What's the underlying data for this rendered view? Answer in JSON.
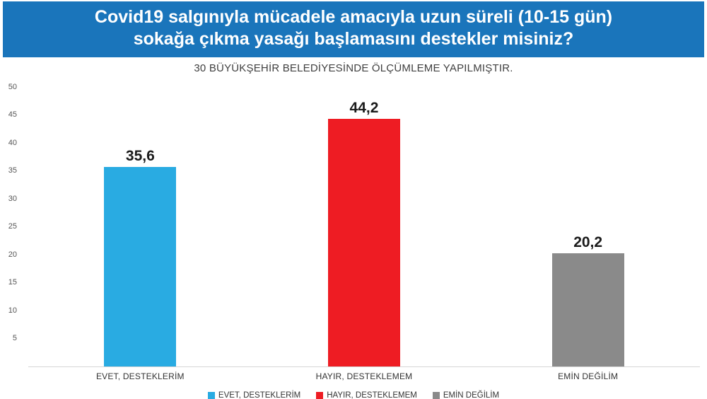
{
  "title": {
    "line1": "Covid19 salgınıyla mücadele amacıyla uzun süreli (10-15 gün)",
    "line2": "sokağa çıkma yasağı başlamasını destekler misiniz?"
  },
  "subtitle": "30 BÜYÜKŞEHİR BELEDİYESİNDE ÖLÇÜMLEME YAPILMIŞTIR.",
  "banner_color": "#1a75bb",
  "chart_data": {
    "type": "bar",
    "title": "Covid19 salgınıyla mücadele amacıyla uzun süreli (10-15 gün) sokağa çıkma yasağı başlamasını destekler misiniz?",
    "subtitle": "30 BÜYÜKŞEHİR BELEDİYESİNDE ÖLÇÜMLEME YAPILMIŞTIR.",
    "categories": [
      "EVET, DESTEKLERİM",
      "HAYIR, DESTEKLEMEM",
      "EMİN DEĞİLİM"
    ],
    "values": [
      35.6,
      44.2,
      20.2
    ],
    "value_labels": [
      "35,6",
      "44,2",
      "20,2"
    ],
    "colors": [
      "#29abe2",
      "#ee1c23",
      "#8a8a8a"
    ],
    "xlabel": "",
    "ylabel": "",
    "ylim": [
      0,
      50
    ],
    "ytick_step": 5,
    "yticks": [
      5,
      10,
      15,
      20,
      25,
      30,
      35,
      40,
      45,
      50
    ],
    "grid": false,
    "legend_position": "bottom",
    "legend": [
      {
        "label": "EVET, DESTEKLERİM",
        "color": "#29abe2"
      },
      {
        "label": "HAYIR, DESTEKLEMEM",
        "color": "#ee1c23"
      },
      {
        "label": "EMİN DEĞİLİM",
        "color": "#8a8a8a"
      }
    ]
  }
}
